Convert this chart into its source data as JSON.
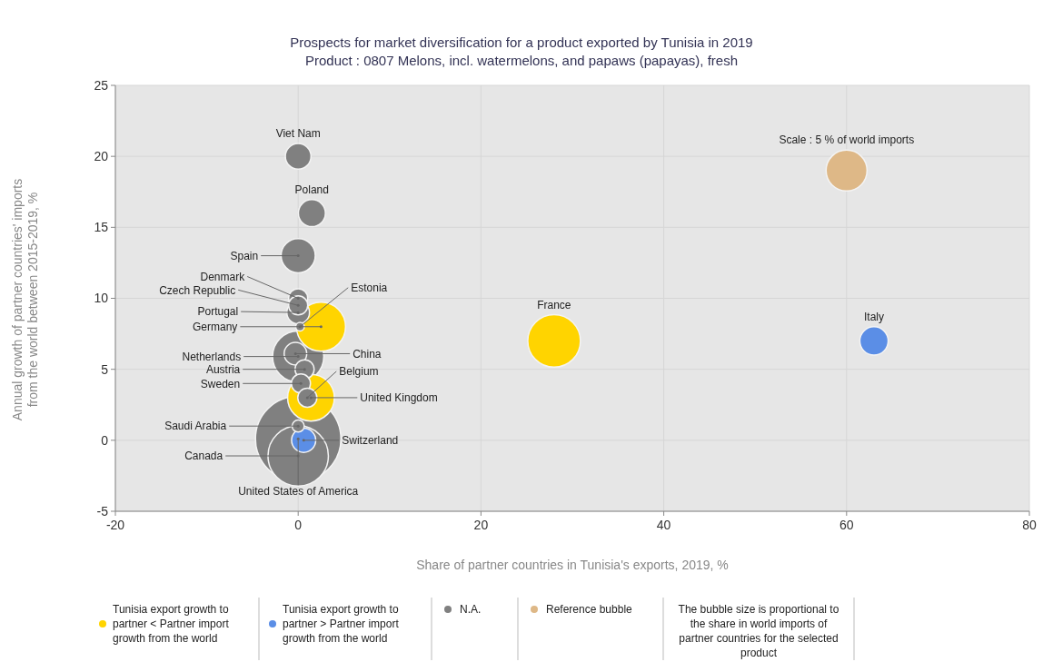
{
  "chart_data": {
    "type": "bubble",
    "title": "Prospects for market diversification for a product exported by Tunisia in 2019",
    "subtitle": "Product : 0807 Melons, incl. watermelons, and papaws (papayas), fresh",
    "xlabel": "Share of partner countries in Tunisia's exports, 2019, %",
    "ylabel": "Annual growth of partner countries' imports\nfrom the world between 2015-2019, %",
    "xlim": [
      -20,
      80
    ],
    "xticks": [
      -20,
      0,
      20,
      40,
      60,
      80
    ],
    "ylim": [
      -5,
      25
    ],
    "yticks": [
      -5,
      0,
      5,
      10,
      15,
      20,
      25
    ],
    "grid": true,
    "legend": "bottom",
    "series": [
      {
        "name": "Tunisia export growth to partner < Partner import growth from the world",
        "color": "#ffd400",
        "x": [
          2.5,
          1.4,
          28
        ],
        "values": [
          8,
          3,
          7
        ],
        "sizes": [
          0.33,
          0.3,
          0.38
        ]
      },
      {
        "name": "Tunisia export growth to partner > Partner import growth from the world",
        "color": "#5b8ee6",
        "x": [
          0.6,
          63
        ],
        "values": [
          0,
          7
        ],
        "sizes": [
          0.08,
          0.11
        ]
      },
      {
        "name": "N.A.",
        "color": "#808080",
        "x": [
          0,
          1.5,
          0,
          0,
          0,
          0,
          0.2,
          0,
          -0.3,
          0.7,
          0.3,
          1,
          0,
          0,
          0
        ],
        "values": [
          20,
          16,
          13,
          10,
          9.5,
          9,
          8,
          5.9,
          6.1,
          5,
          4,
          3,
          1,
          0.1,
          -1.1
        ],
        "sizes": [
          0.09,
          0.1,
          0.16,
          0.05,
          0.05,
          0.07,
          0.01,
          0.36,
          0.07,
          0.05,
          0.05,
          0.05,
          0.02,
          1,
          0.5
        ]
      },
      {
        "name": "Reference bubble",
        "color": "#deb887",
        "x": [
          60
        ],
        "values": [
          19
        ],
        "sizes": [
          0.23
        ]
      }
    ],
    "annotations": [
      {
        "text": "Viet Nam",
        "x": 0,
        "y": 20
      },
      {
        "text": "Poland",
        "x": 1.5,
        "y": 16
      },
      {
        "text": "Spain",
        "x": 0,
        "y": 13
      },
      {
        "text": "Denmark",
        "x": 0,
        "y": 10
      },
      {
        "text": "Czech Republic",
        "x": 0,
        "y": 9.5
      },
      {
        "text": "Portugal",
        "x": 0,
        "y": 9
      },
      {
        "text": "Germany",
        "x": 2.5,
        "y": 8
      },
      {
        "text": "Estonia",
        "x": 0.2,
        "y": 8
      },
      {
        "text": "Netherlands",
        "x": 0,
        "y": 5.9
      },
      {
        "text": "China",
        "x": -0.3,
        "y": 6.1
      },
      {
        "text": "Austria",
        "x": 0.7,
        "y": 5
      },
      {
        "text": "Belgium",
        "x": 1,
        "y": 3
      },
      {
        "text": "Sweden",
        "x": 0.3,
        "y": 4
      },
      {
        "text": "United Kingdom",
        "x": 1.4,
        "y": 3
      },
      {
        "text": "Saudi Arabia",
        "x": 0,
        "y": 1
      },
      {
        "text": "Switzerland",
        "x": 0.6,
        "y": 0
      },
      {
        "text": "Canada",
        "x": 0,
        "y": -1.1
      },
      {
        "text": "United States of America",
        "x": 0,
        "y": 0.1
      },
      {
        "text": "France",
        "x": 28,
        "y": 7
      },
      {
        "text": "Italy",
        "x": 63,
        "y": 7
      },
      {
        "text": "Scale : 5 % of world imports",
        "x": 60,
        "y": 19
      },
      "The bubble size is proportional to the share in world imports of partner countries for the selected product"
    ]
  }
}
